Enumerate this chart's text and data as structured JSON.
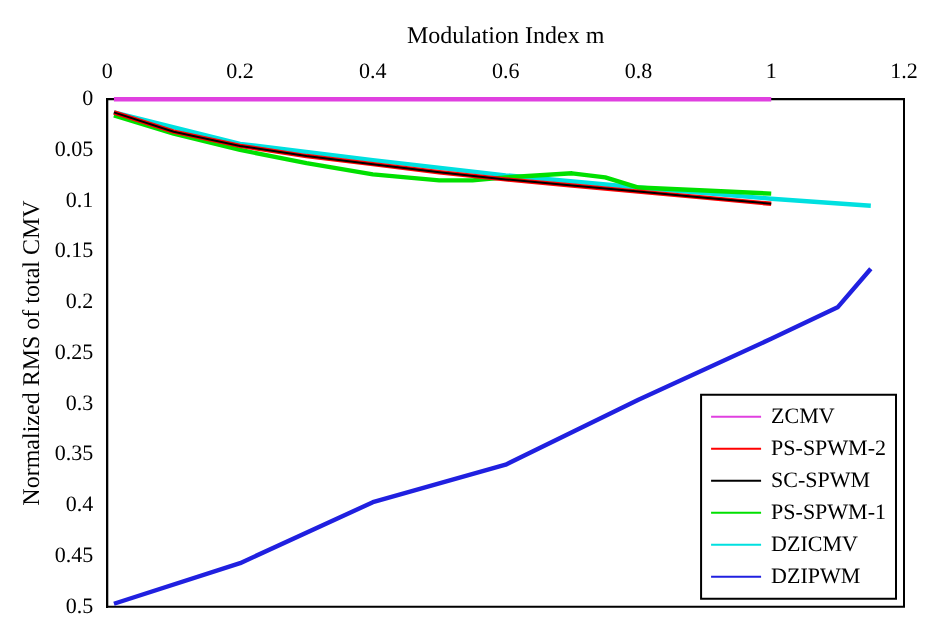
{
  "chart_data": {
    "type": "line",
    "xlabel": "Modulation Index m",
    "ylabel": "Normalized RMS of total CMV",
    "xlim": [
      0,
      1.2
    ],
    "xticks": [
      0,
      0.2,
      0.4,
      0.6,
      0.8,
      1,
      1.2
    ],
    "ylim": [
      0.5,
      0
    ],
    "yticks": [
      0,
      0.05,
      0.1,
      0.15,
      0.2,
      0.25,
      0.3,
      0.35,
      0.4,
      0.45,
      0.5
    ],
    "grid": false,
    "legend": "bottom right",
    "marker": "none",
    "line_style": "solid",
    "series": [
      {
        "name": "ZCMV",
        "color": "#e040e0",
        "x": [
          0.01,
          0.2,
          0.4,
          0.6,
          0.8,
          1.0
        ],
        "values": [
          0,
          0,
          0,
          0,
          0,
          0
        ]
      },
      {
        "name": "PS-SPWM-2",
        "color": "#ff0000",
        "x": [
          0.01,
          0.1,
          0.2,
          0.3,
          0.4,
          0.5,
          0.6,
          0.7,
          0.8,
          0.9,
          1.0
        ],
        "values": [
          0.013,
          0.032,
          0.046,
          0.056,
          0.064,
          0.072,
          0.079,
          0.085,
          0.091,
          0.097,
          0.103
        ]
      },
      {
        "name": "SC-SPWM",
        "color": "#000000",
        "x": [
          0.01,
          0.1,
          0.2,
          0.3,
          0.4,
          0.5,
          0.6,
          0.7,
          0.8,
          0.9,
          1.0
        ],
        "values": [
          0.013,
          0.032,
          0.046,
          0.056,
          0.064,
          0.072,
          0.079,
          0.085,
          0.091,
          0.097,
          0.103
        ]
      },
      {
        "name": "PS-SPWM-1",
        "color": "#00e000",
        "x": [
          0.01,
          0.1,
          0.2,
          0.3,
          0.4,
          0.5,
          0.55,
          0.6,
          0.7,
          0.75,
          0.8,
          0.9,
          1.0
        ],
        "values": [
          0.016,
          0.034,
          0.05,
          0.063,
          0.074,
          0.08,
          0.08,
          0.077,
          0.073,
          0.077,
          0.087,
          0.09,
          0.093
        ]
      },
      {
        "name": "DZICMV",
        "color": "#00e0e0",
        "x": [
          0.01,
          0.2,
          0.4,
          0.6,
          0.8,
          1.0,
          1.15
        ],
        "values": [
          0.013,
          0.044,
          0.06,
          0.075,
          0.087,
          0.098,
          0.105
        ]
      },
      {
        "name": "DZIPWM",
        "color": "#2020e0",
        "x": [
          0.01,
          0.2,
          0.4,
          0.6,
          0.8,
          1.0,
          1.1,
          1.15
        ],
        "values": [
          0.497,
          0.457,
          0.397,
          0.36,
          0.296,
          0.236,
          0.205,
          0.167
        ]
      }
    ]
  }
}
